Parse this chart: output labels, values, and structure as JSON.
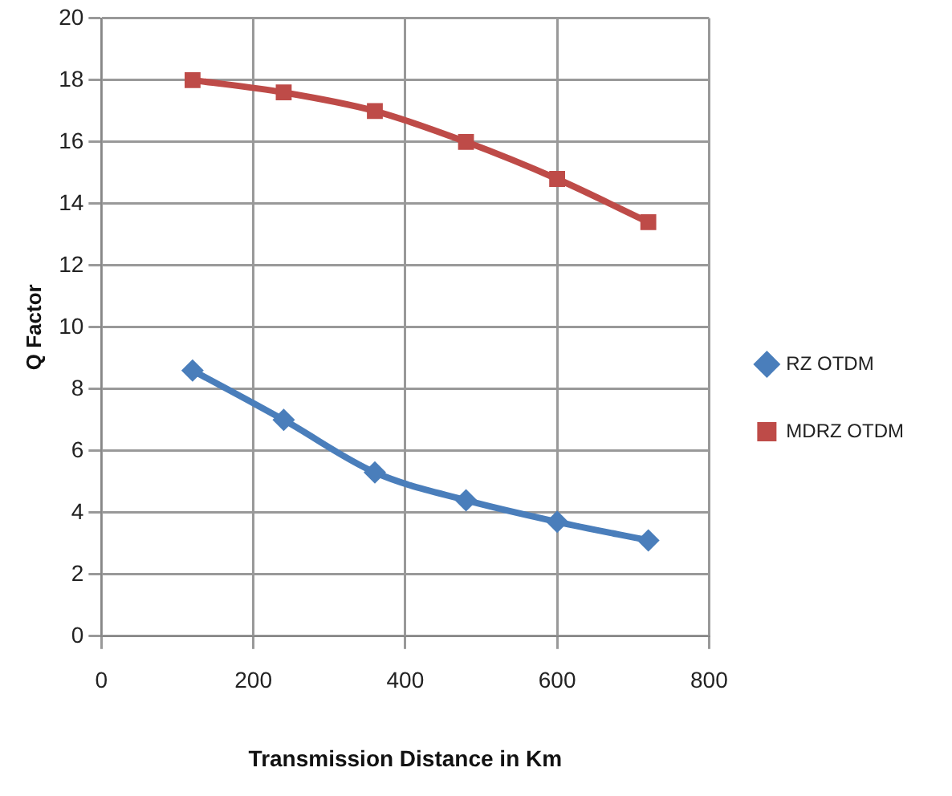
{
  "chart_data": {
    "type": "line",
    "xlabel": "Transmission Distance in Km",
    "ylabel": "Q Factor",
    "x": [
      120,
      240,
      360,
      480,
      600,
      720
    ],
    "series": [
      {
        "name": "RZ OTDM",
        "color": "#4a7ebb",
        "marker": "diamond",
        "values": [
          8.6,
          7,
          5.3,
          4.4,
          3.7,
          3.1
        ]
      },
      {
        "name": "MDRZ OTDM",
        "color": "#be4b48",
        "marker": "square",
        "values": [
          18,
          17.6,
          17,
          16,
          14.8,
          13.4
        ]
      }
    ],
    "xlim": [
      0,
      800
    ],
    "xticks": [
      0,
      200,
      400,
      600,
      800
    ],
    "ylim": [
      0,
      20
    ],
    "yticks": [
      0,
      2,
      4,
      6,
      8,
      10,
      12,
      14,
      16,
      18,
      20
    ],
    "grid": true,
    "legend": "right"
  }
}
